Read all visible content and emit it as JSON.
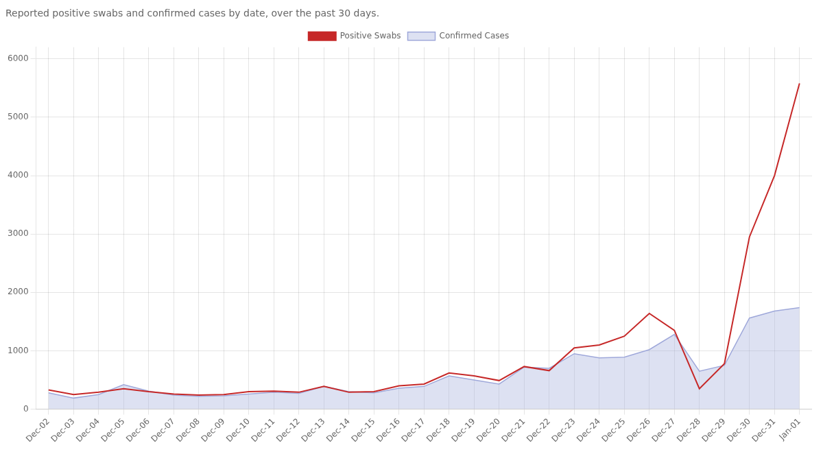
{
  "chart_data": {
    "type": "line",
    "title": "Reported positive swabs and confirmed cases by date, over the past 30 days.",
    "categories": [
      "Dec-02",
      "Dec-03",
      "Dec-04",
      "Dec-05",
      "Dec-06",
      "Dec-07",
      "Dec-08",
      "Dec-09",
      "Dec-10",
      "Dec-11",
      "Dec-12",
      "Dec-13",
      "Dec-14",
      "Dec-15",
      "Dec-16",
      "Dec-17",
      "Dec-18",
      "Dec-19",
      "Dec-20",
      "Dec-21",
      "Dec-22",
      "Dec-23",
      "Dec-24",
      "Dec-25",
      "Dec-26",
      "Dec-27",
      "Dec-28",
      "Dec-29",
      "Dec-30",
      "Dec-31",
      "Jan-01"
    ],
    "series": [
      {
        "name": "Confirmed Cases",
        "type": "area",
        "color": "#9fa8da",
        "values": [
          280,
          190,
          250,
          420,
          310,
          240,
          220,
          230,
          260,
          290,
          270,
          390,
          300,
          280,
          360,
          390,
          570,
          500,
          430,
          720,
          700,
          950,
          880,
          890,
          1020,
          1280,
          650,
          750,
          1560,
          1680,
          1740
        ]
      },
      {
        "name": "Positive Swabs",
        "type": "line",
        "color": "#c62828",
        "values": [
          330,
          250,
          290,
          350,
          300,
          260,
          240,
          250,
          300,
          310,
          290,
          390,
          290,
          300,
          400,
          430,
          620,
          570,
          490,
          730,
          660,
          1050,
          1100,
          1250,
          1640,
          1350,
          350,
          780,
          2950,
          4000,
          5580
        ]
      }
    ],
    "ylim": [
      0,
      6200
    ],
    "yticks": [
      0,
      1000,
      2000,
      3000,
      4000,
      5000,
      6000
    ],
    "grid": true,
    "legend": "top"
  }
}
